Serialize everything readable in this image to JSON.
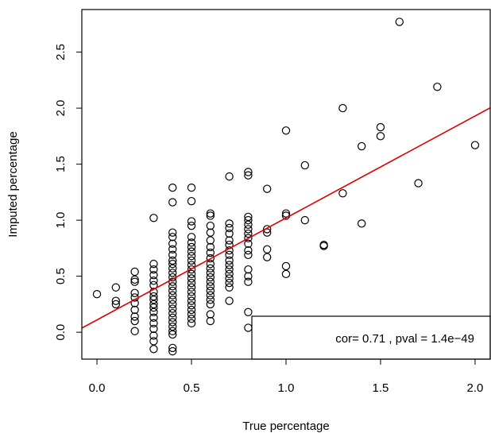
{
  "colors": {
    "points": "#000000",
    "fit_line": "#e00000",
    "axes": "#000000"
  },
  "chart_data": {
    "type": "scatter",
    "xlabel": "True percentage",
    "ylabel": "Imputed percentage",
    "xlim": [
      -0.08,
      2.08
    ],
    "ylim": [
      -0.24,
      2.88
    ],
    "x_ticks": [
      "0.0",
      "0.5",
      "1.0",
      "1.5",
      "2.0"
    ],
    "y_ticks": [
      "0.0",
      "0.5",
      "1.0",
      "1.5",
      "2.0",
      "2.5"
    ],
    "grid": false,
    "legend": {
      "placement": "bottom-right",
      "text": "cor= 0.71 , pval =  1.4e−49"
    },
    "fit_line": {
      "intercept": 0.11,
      "slope": 0.91
    },
    "points": [
      [
        0.0,
        0.34
      ],
      [
        0.1,
        0.4
      ],
      [
        0.1,
        0.28
      ],
      [
        0.1,
        0.25
      ],
      [
        0.2,
        0.54
      ],
      [
        0.2,
        0.47
      ],
      [
        0.2,
        0.45
      ],
      [
        0.2,
        0.35
      ],
      [
        0.2,
        0.31
      ],
      [
        0.2,
        0.26
      ],
      [
        0.2,
        0.2
      ],
      [
        0.2,
        0.14
      ],
      [
        0.2,
        0.1
      ],
      [
        0.2,
        0.01
      ],
      [
        0.3,
        1.02
      ],
      [
        0.3,
        0.61
      ],
      [
        0.3,
        0.56
      ],
      [
        0.3,
        0.51
      ],
      [
        0.3,
        0.46
      ],
      [
        0.3,
        0.42
      ],
      [
        0.3,
        0.36
      ],
      [
        0.3,
        0.32
      ],
      [
        0.3,
        0.29
      ],
      [
        0.3,
        0.25
      ],
      [
        0.3,
        0.22
      ],
      [
        0.3,
        0.18
      ],
      [
        0.3,
        0.13
      ],
      [
        0.3,
        0.08
      ],
      [
        0.3,
        0.03
      ],
      [
        0.3,
        -0.03
      ],
      [
        0.3,
        -0.08
      ],
      [
        0.3,
        -0.15
      ],
      [
        0.4,
        1.29
      ],
      [
        0.4,
        1.16
      ],
      [
        0.4,
        0.89
      ],
      [
        0.4,
        0.85
      ],
      [
        0.4,
        0.79
      ],
      [
        0.4,
        0.74
      ],
      [
        0.4,
        0.69
      ],
      [
        0.4,
        0.64
      ],
      [
        0.4,
        0.61
      ],
      [
        0.4,
        0.57
      ],
      [
        0.4,
        0.53
      ],
      [
        0.4,
        0.49
      ],
      [
        0.4,
        0.45
      ],
      [
        0.4,
        0.41
      ],
      [
        0.4,
        0.37
      ],
      [
        0.4,
        0.33
      ],
      [
        0.4,
        0.29
      ],
      [
        0.4,
        0.25
      ],
      [
        0.4,
        0.21
      ],
      [
        0.4,
        0.17
      ],
      [
        0.4,
        0.13
      ],
      [
        0.4,
        0.09
      ],
      [
        0.4,
        0.05
      ],
      [
        0.4,
        0.01
      ],
      [
        0.4,
        -0.02
      ],
      [
        0.4,
        -0.14
      ],
      [
        0.4,
        -0.17
      ],
      [
        0.5,
        1.29
      ],
      [
        0.5,
        1.17
      ],
      [
        0.5,
        0.99
      ],
      [
        0.5,
        0.95
      ],
      [
        0.5,
        0.85
      ],
      [
        0.5,
        0.8
      ],
      [
        0.5,
        0.76
      ],
      [
        0.5,
        0.72
      ],
      [
        0.5,
        0.68
      ],
      [
        0.5,
        0.64
      ],
      [
        0.5,
        0.6
      ],
      [
        0.5,
        0.56
      ],
      [
        0.5,
        0.52
      ],
      [
        0.5,
        0.48
      ],
      [
        0.5,
        0.44
      ],
      [
        0.5,
        0.4
      ],
      [
        0.5,
        0.36
      ],
      [
        0.5,
        0.32
      ],
      [
        0.5,
        0.28
      ],
      [
        0.5,
        0.24
      ],
      [
        0.5,
        0.2
      ],
      [
        0.5,
        0.16
      ],
      [
        0.5,
        0.12
      ],
      [
        0.5,
        0.08
      ],
      [
        0.6,
        1.06
      ],
      [
        0.6,
        1.04
      ],
      [
        0.6,
        0.95
      ],
      [
        0.6,
        0.89
      ],
      [
        0.6,
        0.82
      ],
      [
        0.6,
        0.76
      ],
      [
        0.6,
        0.71
      ],
      [
        0.6,
        0.66
      ],
      [
        0.6,
        0.61
      ],
      [
        0.6,
        0.57
      ],
      [
        0.6,
        0.53
      ],
      [
        0.6,
        0.49
      ],
      [
        0.6,
        0.45
      ],
      [
        0.6,
        0.41
      ],
      [
        0.6,
        0.37
      ],
      [
        0.6,
        0.33
      ],
      [
        0.6,
        0.29
      ],
      [
        0.6,
        0.25
      ],
      [
        0.6,
        0.16
      ],
      [
        0.6,
        0.1
      ],
      [
        0.7,
        1.39
      ],
      [
        0.7,
        0.97
      ],
      [
        0.7,
        0.93
      ],
      [
        0.7,
        0.88
      ],
      [
        0.7,
        0.82
      ],
      [
        0.7,
        0.78
      ],
      [
        0.7,
        0.73
      ],
      [
        0.7,
        0.69
      ],
      [
        0.7,
        0.64
      ],
      [
        0.7,
        0.6
      ],
      [
        0.7,
        0.56
      ],
      [
        0.7,
        0.52
      ],
      [
        0.7,
        0.48
      ],
      [
        0.7,
        0.44
      ],
      [
        0.7,
        0.4
      ],
      [
        0.7,
        0.28
      ],
      [
        0.8,
        1.43
      ],
      [
        0.8,
        1.4
      ],
      [
        0.8,
        1.03
      ],
      [
        0.8,
        1.0
      ],
      [
        0.8,
        0.96
      ],
      [
        0.8,
        0.92
      ],
      [
        0.8,
        0.88
      ],
      [
        0.8,
        0.84
      ],
      [
        0.8,
        0.79
      ],
      [
        0.8,
        0.73
      ],
      [
        0.8,
        0.69
      ],
      [
        0.8,
        0.56
      ],
      [
        0.8,
        0.5
      ],
      [
        0.8,
        0.45
      ],
      [
        0.8,
        0.18
      ],
      [
        0.8,
        0.04
      ],
      [
        0.9,
        1.28
      ],
      [
        0.9,
        0.92
      ],
      [
        0.9,
        0.89
      ],
      [
        0.9,
        0.74
      ],
      [
        0.9,
        0.67
      ],
      [
        1.0,
        1.8
      ],
      [
        1.0,
        1.06
      ],
      [
        1.0,
        1.04
      ],
      [
        1.0,
        0.59
      ],
      [
        1.0,
        0.52
      ],
      [
        1.1,
        1.49
      ],
      [
        1.1,
        1.0
      ],
      [
        1.2,
        0.78
      ],
      [
        1.2,
        0.77
      ],
      [
        1.3,
        2.0
      ],
      [
        1.3,
        1.24
      ],
      [
        1.4,
        1.66
      ],
      [
        1.4,
        0.97
      ],
      [
        1.5,
        1.83
      ],
      [
        1.5,
        1.75
      ],
      [
        1.6,
        2.77
      ],
      [
        1.7,
        1.33
      ],
      [
        1.8,
        2.19
      ],
      [
        2.0,
        1.67
      ]
    ]
  }
}
